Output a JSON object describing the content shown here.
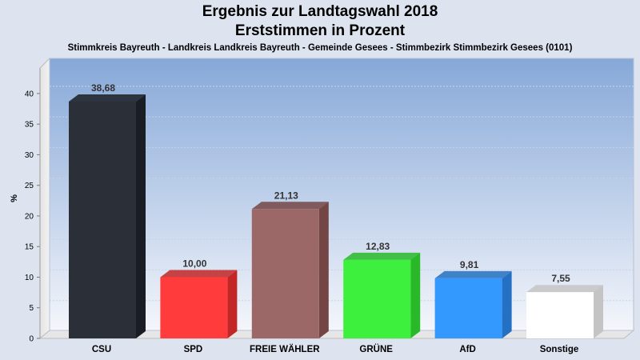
{
  "chart_data": {
    "type": "bar",
    "title": "Ergebnis zur Landtagswahl 2018",
    "subtitle": "Erststimmen in Prozent",
    "caption": "Stimmkreis Bayreuth - Landkreis Landkreis Bayreuth - Gemeinde Gesees - Stimmbezirk Stimmbezirk Gesees (0101)",
    "ylabel": "%",
    "ylim": [
      0,
      45
    ],
    "yticks": [
      0,
      5,
      10,
      15,
      20,
      25,
      30,
      35,
      40
    ],
    "grid": true,
    "categories": [
      "CSU",
      "SPD",
      "FREIE WÄHLER",
      "GRÜNE",
      "AfD",
      "Sonstige"
    ],
    "values": [
      38.68,
      10.0,
      21.13,
      12.83,
      9.81,
      7.55
    ],
    "value_labels": [
      "38,68",
      "10,00",
      "21,13",
      "12,83",
      "9,81",
      "7,55"
    ],
    "colors": [
      "#2b2f38",
      "#ff3b3b",
      "#9b6767",
      "#3df03d",
      "#3399ff",
      "#ffffff"
    ],
    "side_colors": [
      "#1a1d24",
      "#c22626",
      "#734545",
      "#28b828",
      "#2470c2",
      "#c4c4c4"
    ]
  }
}
